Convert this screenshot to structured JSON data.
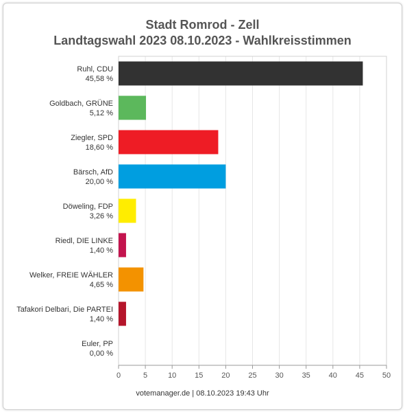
{
  "chart_data": {
    "type": "bar",
    "orientation": "horizontal",
    "title": "Stadt Romrod - Zell",
    "subtitle": "Landtagswahl 2023 08.10.2023  - Wahlkreisstimmen",
    "categories": [
      "Ruhl, CDU",
      "Goldbach, GRÜNE",
      "Ziegler, SPD",
      "Bärsch, AfD",
      "Döweling, FDP",
      "Riedl, DIE LINKE",
      "Welker, FREIE WÄHLER",
      "Tafakori Delbari, Die PARTEI",
      "Euler, PP"
    ],
    "value_labels": [
      "45,58 %",
      "5,12 %",
      "18,60 %",
      "20,00 %",
      "3,26 %",
      "1,40 %",
      "4,65 %",
      "1,40 %",
      "0,00 %"
    ],
    "values": [
      45.58,
      5.12,
      18.6,
      20.0,
      3.26,
      1.4,
      4.65,
      1.4,
      0.0
    ],
    "colors": [
      "#323232",
      "#5cb85c",
      "#ee1c25",
      "#009ee0",
      "#ffed00",
      "#c3144e",
      "#f39200",
      "#b5152b",
      "#ff7f00"
    ],
    "xlim": [
      0,
      50
    ],
    "xticks": [
      0,
      5,
      10,
      15,
      20,
      25,
      30,
      35,
      40,
      45,
      50
    ],
    "grid": true,
    "legend": "none"
  },
  "footer": "votemanager.de | 08.10.2023 19:43 Uhr"
}
